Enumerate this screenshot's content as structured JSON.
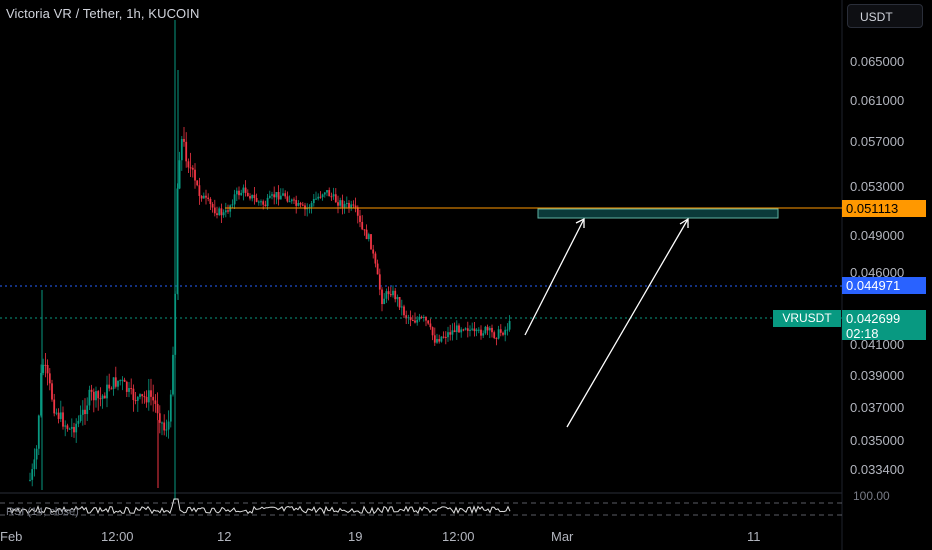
{
  "header": {
    "title": "Victoria VR / Tether, 1h, KUCOIN"
  },
  "toolbar": {
    "currency_label": "USDT"
  },
  "price_axis": {
    "labels": [
      "0.065000",
      "0.061000",
      "0.057000",
      "0.053000",
      "0.049000",
      "0.046000",
      "0.041000",
      "0.039000",
      "0.037000",
      "0.035000",
      "0.033400"
    ]
  },
  "time_axis": {
    "labels": [
      "Feb",
      "12:00",
      "12",
      "19",
      "12:00",
      "Mar",
      "11"
    ]
  },
  "price_tags": {
    "resistance": "0.051113",
    "line2": "0.044971",
    "last": "0.042699",
    "countdown": "02:18",
    "symbol": "VRUSDT"
  },
  "rsi": {
    "label": "RSI (14, close)",
    "upper": "100.00"
  },
  "colors": {
    "up": "#089981",
    "down": "#f23645",
    "orange": "#ff9800",
    "blue": "#2962ff",
    "zone": "#0b3a3a"
  }
}
